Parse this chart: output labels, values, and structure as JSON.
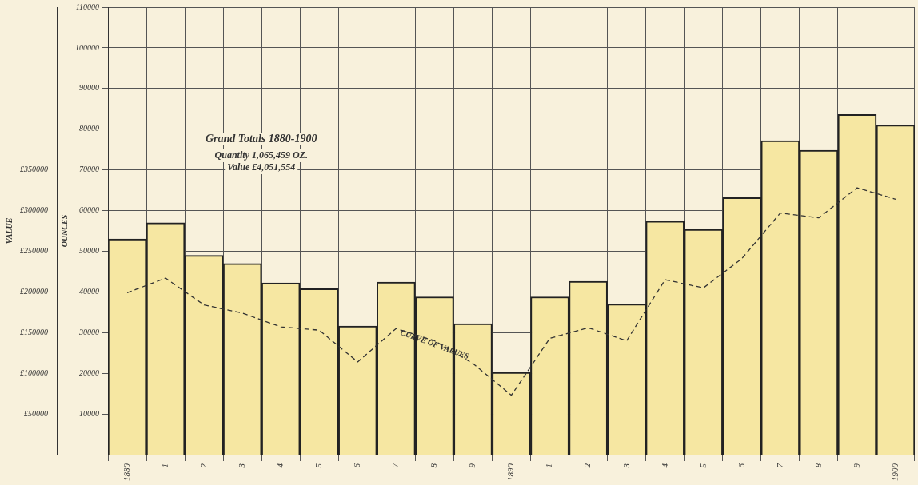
{
  "chart_data": {
    "type": "bar",
    "ylabel": "OUNCES",
    "y2label": "VALUE",
    "categories": [
      "1880",
      "1",
      "2",
      "3",
      "4",
      "5",
      "6",
      "7",
      "8",
      "9",
      "1890",
      "1",
      "2",
      "3",
      "4",
      "5",
      "6",
      "7",
      "8",
      "9",
      "1900"
    ],
    "series": [
      {
        "color": "#f6e7a2",
        "values": [
          53000,
          57000,
          49000,
          47000,
          42200,
          40800,
          31600,
          42400,
          38800,
          32200,
          20200,
          38800,
          42600,
          37000,
          57400,
          55400,
          63200,
          77200,
          74800,
          83600,
          81000
        ]
      },
      {
        "type": "line",
        "axis": "y2",
        "color": "#333333",
        "line_style": "dashed",
        "values": [
          199000,
          217000,
          184000,
          174000,
          157000,
          153000,
          114000,
          155000,
          140000,
          112000,
          73000,
          143000,
          156000,
          140000,
          215000,
          205000,
          241000,
          297000,
          291000,
          328000,
          314000
        ]
      }
    ],
    "ylim": [
      0,
      110000
    ],
    "yticks": [
      10000,
      20000,
      30000,
      40000,
      50000,
      60000,
      70000,
      80000,
      90000,
      100000,
      110000
    ],
    "y2lim": [
      0,
      550000
    ],
    "y2ticks": [
      {
        "value": 50000,
        "label": "£50000"
      },
      {
        "value": 100000,
        "label": "£100000"
      },
      {
        "value": 150000,
        "label": "£150000"
      },
      {
        "value": 200000,
        "label": "£200000"
      },
      {
        "value": 250000,
        "label": "£250000"
      },
      {
        "value": 300000,
        "label": "£300000"
      },
      {
        "value": 350000,
        "label": "£350000"
      }
    ],
    "grid": true,
    "legend": false,
    "marker": "none",
    "annotations": [
      "Grand Totals 1880-1900",
      "Quantity 1,065,459 OZ.",
      "Value £4,051,554",
      {
        "text": "CURVE OF VALUES",
        "x": "8",
        "y": 27000
      }
    ]
  }
}
